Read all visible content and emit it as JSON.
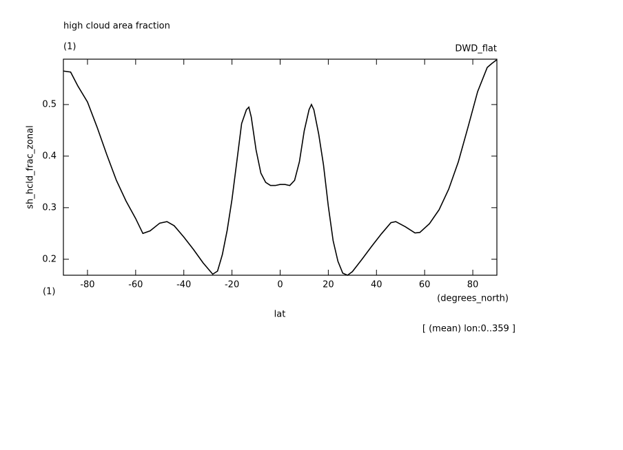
{
  "chart_data": {
    "type": "line",
    "title": "high cloud area fraction",
    "subtitle": "(1)",
    "dataset_label": "DWD_flat",
    "y_label": "sh_hcld_frac_zonal",
    "y_units": "(1)",
    "x_label": "lat",
    "x_units": "(degrees_north)",
    "note": "[ (mean) lon:0..359 ]",
    "x": [
      -90,
      -87,
      -84,
      -80,
      -76,
      -72,
      -68,
      -64,
      -60,
      -57,
      -54,
      -50,
      -47,
      -44,
      -40,
      -36,
      -32,
      -28,
      -26,
      -24,
      -22,
      -20,
      -18,
      -16,
      -14,
      -13,
      -12,
      -10,
      -8,
      -6,
      -4,
      -2,
      0,
      2,
      4,
      6,
      8,
      10,
      12,
      13,
      14,
      16,
      18,
      20,
      22,
      24,
      26,
      28,
      30,
      34,
      38,
      42,
      46,
      48,
      52,
      56,
      58,
      62,
      66,
      70,
      74,
      78,
      82,
      86,
      88,
      90
    ],
    "series": [
      {
        "color": "#000000",
        "values": [
          0.565,
          0.563,
          0.536,
          0.505,
          0.456,
          0.403,
          0.353,
          0.313,
          0.279,
          0.25,
          0.255,
          0.27,
          0.273,
          0.265,
          0.243,
          0.219,
          0.193,
          0.171,
          0.177,
          0.209,
          0.256,
          0.316,
          0.389,
          0.463,
          0.49,
          0.495,
          0.476,
          0.412,
          0.367,
          0.349,
          0.343,
          0.343,
          0.345,
          0.345,
          0.343,
          0.353,
          0.389,
          0.449,
          0.49,
          0.5,
          0.49,
          0.443,
          0.383,
          0.303,
          0.236,
          0.196,
          0.173,
          0.169,
          0.176,
          0.2,
          0.225,
          0.249,
          0.271,
          0.273,
          0.263,
          0.251,
          0.252,
          0.269,
          0.296,
          0.336,
          0.389,
          0.456,
          0.525,
          0.572,
          0.58,
          0.587
        ]
      }
    ],
    "xlim": [
      -90,
      90
    ],
    "xticks": [
      -80,
      -60,
      -40,
      -20,
      0,
      20,
      40,
      60,
      80
    ],
    "ylim": [
      0.169,
      0.588
    ],
    "yticks": [
      0.2,
      0.3,
      0.4,
      0.5
    ]
  }
}
